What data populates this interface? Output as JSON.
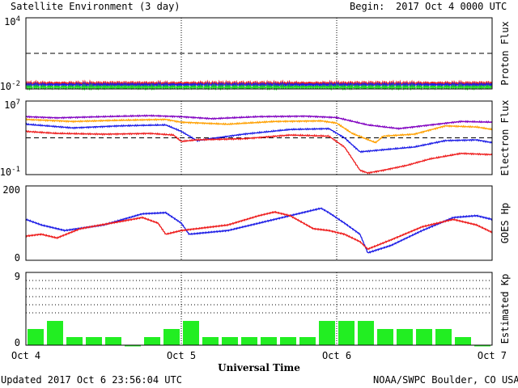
{
  "header": {
    "title": "Satellite Environment (3 day)",
    "begin_label": "Begin:",
    "begin_value": "2017 Oct 4 0000 UTC"
  },
  "footer": {
    "updated": "Updated 2017 Oct  6 23:56:04 UTC",
    "credit": "NOAA/SWPC Boulder, CO USA"
  },
  "colors": {
    "red": "#ee1c1c",
    "blue": "#1c1ce6",
    "green": "#22dd22",
    "purple": "#8000c0",
    "orange": "#ffa000",
    "kp_bar": "#22ee22"
  },
  "chart_data": [
    {
      "type": "line",
      "id": "proton",
      "ylabel": "Proton Flux",
      "y_scale": "log",
      "y_ticks": [
        {
          "base": "10",
          "exp": "4",
          "value": 10000
        },
        {
          "base": "10",
          "exp": "-2",
          "value": 0.01
        }
      ],
      "ylim": [
        0.01,
        10000
      ],
      "threshold": 10,
      "series": [
        {
          "color": "red",
          "x": [
            0,
            3
          ],
          "y": [
            0.03,
            0.03
          ]
        },
        {
          "color": "blue",
          "x": [
            0,
            3
          ],
          "y": [
            0.022,
            0.022
          ]
        },
        {
          "color": "green",
          "x": [
            0,
            3
          ],
          "y": [
            0.014,
            0.014
          ]
        }
      ]
    },
    {
      "type": "line",
      "id": "electron",
      "ylabel": "Electron Flux",
      "y_scale": "log",
      "y_ticks": [
        {
          "base": "10",
          "exp": "7",
          "value": 10000000
        },
        {
          "base": "10",
          "exp": "-1",
          "value": 0.1
        }
      ],
      "ylim": [
        0.1,
        10000000
      ],
      "threshold": 1000,
      "series": [
        {
          "color": "purple",
          "x": [
            0,
            0.2,
            0.5,
            0.8,
            1.0,
            1.2,
            1.5,
            1.8,
            2.0,
            2.2,
            2.4,
            2.6,
            2.8,
            3.0
          ],
          "y": [
            200000,
            150000,
            200000,
            260000,
            200000,
            120000,
            200000,
            230000,
            160000,
            25000,
            10000,
            25000,
            60000,
            50000
          ]
        },
        {
          "color": "orange",
          "x": [
            0,
            0.3,
            0.6,
            0.9,
            1.0,
            1.3,
            1.6,
            1.9,
            2.0,
            2.1,
            2.25,
            2.3,
            2.5,
            2.7,
            2.9,
            3.0
          ],
          "y": [
            100000,
            60000,
            80000,
            100000,
            50000,
            30000,
            60000,
            70000,
            40000,
            3000,
            300,
            1500,
            2500,
            20000,
            15000,
            8000
          ]
        },
        {
          "color": "blue",
          "x": [
            0,
            0.3,
            0.6,
            0.9,
            1.0,
            1.1,
            1.4,
            1.7,
            1.95,
            2.05,
            2.15,
            2.3,
            2.5,
            2.7,
            2.9,
            3.0
          ],
          "y": [
            30000,
            12000,
            20000,
            25000,
            5000,
            500,
            2500,
            8000,
            10000,
            1000,
            30,
            50,
            100,
            500,
            600,
            300
          ]
        },
        {
          "color": "red",
          "x": [
            0,
            0.2,
            0.5,
            0.8,
            0.95,
            1.0,
            1.1,
            1.4,
            1.7,
            1.95,
            2.05,
            2.15,
            2.2,
            2.3,
            2.45,
            2.6,
            2.8,
            3.0
          ],
          "y": [
            5000,
            3000,
            2500,
            3000,
            2000,
            400,
            600,
            800,
            2000,
            1500,
            100,
            0.3,
            0.15,
            0.3,
            1,
            5,
            20,
            15
          ]
        }
      ]
    },
    {
      "type": "line",
      "id": "goes_hp",
      "ylabel": "GOES Hp",
      "y_ticks": [
        {
          "label": "200",
          "value": 200
        },
        {
          "label": "0",
          "value": 0
        }
      ],
      "ylim": [
        0,
        200
      ],
      "series": [
        {
          "color": "blue",
          "x": [
            0,
            0.1,
            0.25,
            0.5,
            0.75,
            0.9,
            1.0,
            1.05,
            1.3,
            1.6,
            1.8,
            1.9,
            1.95,
            2.05,
            2.15,
            2.2,
            2.35,
            2.55,
            2.75,
            2.9,
            3.0
          ],
          "y": [
            110,
            95,
            80,
            95,
            125,
            128,
            100,
            70,
            80,
            110,
            130,
            140,
            128,
            100,
            70,
            20,
            40,
            80,
            115,
            120,
            110
          ]
        },
        {
          "color": "red",
          "x": [
            0,
            0.1,
            0.2,
            0.35,
            0.55,
            0.75,
            0.85,
            0.9,
            1.0,
            1.1,
            1.3,
            1.5,
            1.6,
            1.7,
            1.85,
            1.95,
            2.05,
            2.15,
            2.2,
            2.35,
            2.55,
            2.75,
            2.9,
            3.0
          ],
          "y": [
            65,
            70,
            60,
            85,
            100,
            115,
            100,
            70,
            80,
            85,
            95,
            120,
            130,
            120,
            85,
            80,
            70,
            50,
            30,
            55,
            90,
            110,
            95,
            75
          ]
        }
      ]
    },
    {
      "type": "bar",
      "id": "kp",
      "ylabel": "Estimated Kp",
      "y_ticks": [
        {
          "label": "9",
          "value": 9
        },
        {
          "label": "0",
          "value": 0
        }
      ],
      "ylim": [
        0,
        9
      ],
      "grid": [
        4,
        5,
        6,
        7,
        8
      ],
      "values": [
        2,
        3,
        1,
        1,
        1,
        0,
        1,
        2,
        3,
        1,
        1,
        1,
        1,
        1,
        1,
        3,
        3,
        3,
        2,
        2,
        2,
        2,
        1,
        0
      ]
    }
  ],
  "x_axis": {
    "xlabel": "Universal Time",
    "ticks": [
      {
        "value": 0,
        "label": "Oct 4"
      },
      {
        "value": 1,
        "label": "Oct 5"
      },
      {
        "value": 2,
        "label": "Oct 6"
      },
      {
        "value": 3,
        "label": "Oct 7"
      }
    ]
  }
}
